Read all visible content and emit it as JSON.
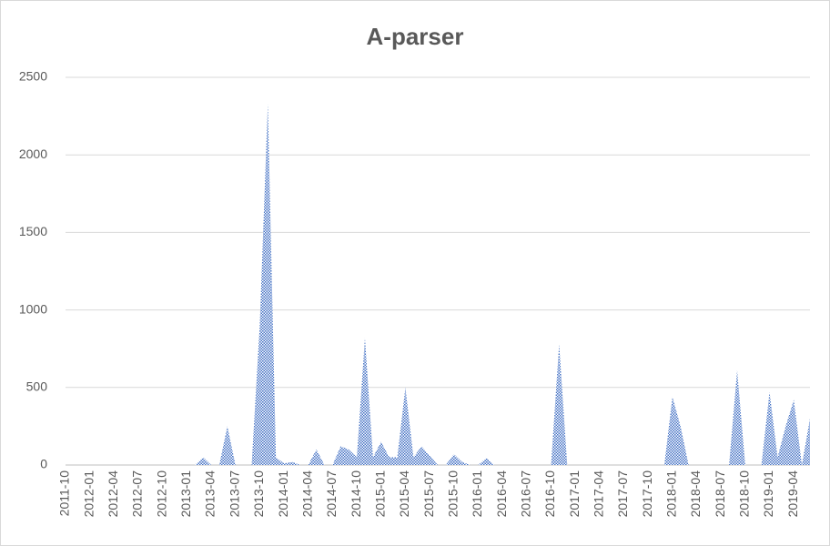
{
  "chart_data": {
    "type": "area",
    "title": "A-parser",
    "categories": [
      "2011-10",
      null,
      null,
      "2012-01",
      null,
      null,
      "2012-04",
      null,
      null,
      "2012-07",
      null,
      null,
      "2012-10",
      null,
      null,
      "2013-01",
      null,
      null,
      "2013-04",
      null,
      null,
      "2013-07",
      null,
      null,
      "2013-10",
      null,
      null,
      "2014-01",
      null,
      null,
      "2014-04",
      null,
      null,
      "2014-07",
      null,
      null,
      "2014-10",
      null,
      null,
      "2015-01",
      null,
      null,
      "2015-04",
      null,
      null,
      "2015-07",
      null,
      null,
      "2015-10",
      null,
      null,
      "2016-01",
      null,
      null,
      "2016-04",
      null,
      null,
      "2016-07",
      null,
      null,
      "2016-10",
      null,
      null,
      "2017-01",
      null,
      null,
      "2017-04",
      null,
      null,
      "2017-07",
      null,
      null,
      "2017-10",
      null,
      null,
      "2018-01",
      null,
      null,
      "2018-04",
      null,
      null,
      "2018-07",
      null,
      null,
      "2018-10",
      null,
      null,
      "2019-01",
      null,
      null,
      "2019-04",
      null,
      null
    ],
    "values": [
      0,
      0,
      0,
      0,
      0,
      0,
      0,
      0,
      0,
      0,
      0,
      0,
      0,
      0,
      0,
      0,
      0,
      50,
      0,
      0,
      250,
      0,
      0,
      0,
      900,
      2330,
      50,
      10,
      20,
      0,
      0,
      100,
      0,
      0,
      120,
      100,
      50,
      820,
      50,
      150,
      50,
      50,
      500,
      50,
      120,
      60,
      0,
      0,
      70,
      20,
      0,
      0,
      45,
      0,
      0,
      0,
      0,
      0,
      0,
      0,
      0,
      780,
      0,
      0,
      0,
      0,
      0,
      0,
      0,
      0,
      0,
      0,
      0,
      0,
      0,
      440,
      250,
      0,
      0,
      0,
      0,
      0,
      0,
      610,
      0,
      0,
      0,
      470,
      50,
      250,
      420,
      0,
      300
    ],
    "color": "#4472c4",
    "ylim": [
      0,
      2500
    ],
    "yticks": [
      0,
      500,
      1000,
      1500,
      2000,
      2500
    ],
    "grid": true
  }
}
